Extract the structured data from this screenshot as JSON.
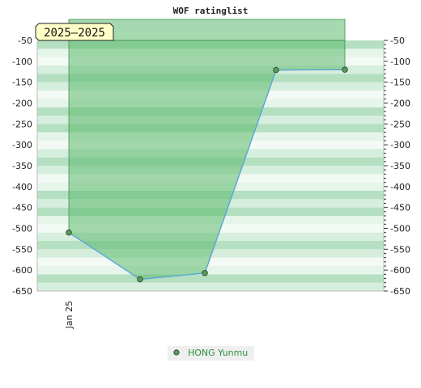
{
  "chart_data": {
    "type": "area",
    "title": "WOF ratinglist",
    "period_badge": "2025–2025",
    "xlabel": "",
    "ylabel": "",
    "x_ticks": [
      "Jan 25"
    ],
    "ylim": [
      -650,
      -50
    ],
    "y_ticks": [
      -50,
      -100,
      -150,
      -200,
      -250,
      -300,
      -350,
      -400,
      -450,
      -500,
      -550,
      -600,
      -650
    ],
    "grid": "banded-horizontal",
    "legend_position": "bottom-center",
    "series": [
      {
        "name": "HONG Yunmu",
        "color": "#5a9a5a",
        "values": [
          -510,
          -622,
          -607,
          -121,
          -120
        ]
      }
    ],
    "colors": {
      "area_fill": "#5dba6e",
      "line": "#5aa5d8",
      "marker": "#5a9a5a",
      "band_dark": "#b4dfc0",
      "band_light": "#e6f5ea",
      "badge_bg": "#ffffc8"
    }
  }
}
